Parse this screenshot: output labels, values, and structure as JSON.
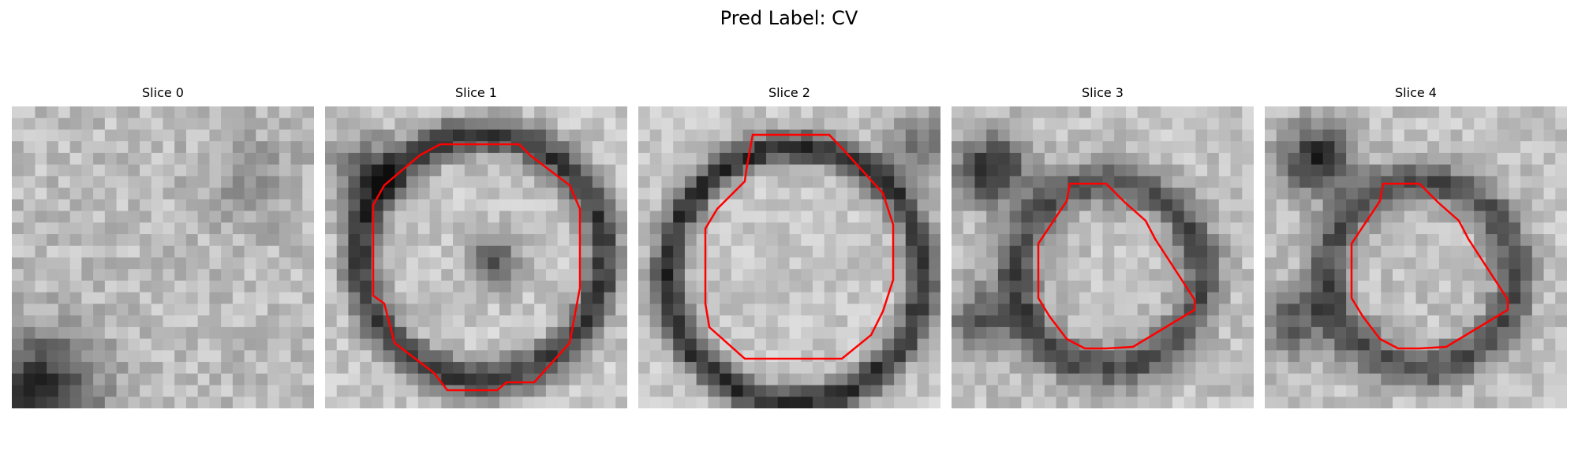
{
  "title": "Pred Label: CV",
  "contour_color": "#ff0000",
  "slices": [
    {
      "label": "Slice 0",
      "has_contour": false
    },
    {
      "label": "Slice 1",
      "has_contour": true
    },
    {
      "label": "Slice 2",
      "has_contour": true
    },
    {
      "label": "Slice 3",
      "has_contour": true
    },
    {
      "label": "Slice 4",
      "has_contour": true
    }
  ]
}
